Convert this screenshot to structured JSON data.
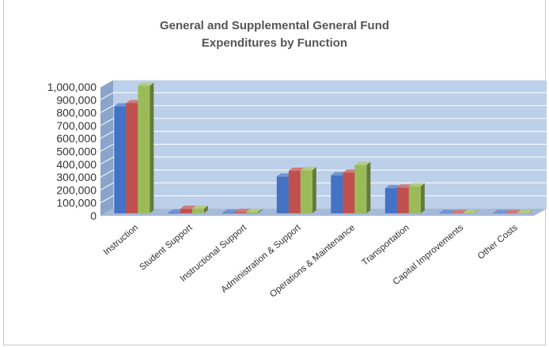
{
  "chart_data": {
    "type": "bar",
    "title_lines": [
      "General and Supplemental General Fund",
      "Expenditures by Function"
    ],
    "xlabel": "",
    "ylabel": "",
    "categories": [
      "Instruction",
      "Student Support",
      "Instructional Support",
      "Administration & Support",
      "Operations & Maintenance",
      "Transportation",
      "Capital Improvements",
      "Other Costs"
    ],
    "ylim": [
      0,
      1000000
    ],
    "yticks": [
      0,
      100000,
      200000,
      300000,
      400000,
      500000,
      600000,
      700000,
      800000,
      900000,
      1000000
    ],
    "ytick_labels": [
      "0",
      "100,000",
      "200,000",
      "300,000",
      "400,000",
      "500,000",
      "600,000",
      "700,000",
      "800,000",
      "900,000",
      "1,000,000"
    ],
    "grid": true,
    "legend": "none",
    "series": [
      {
        "color": "#4472c4",
        "values": [
          830000,
          5000,
          5000,
          285000,
          295000,
          195000,
          3000,
          3000
        ]
      },
      {
        "color": "#c0504d",
        "values": [
          855000,
          35000,
          10000,
          330000,
          315000,
          200000,
          3000,
          3000
        ]
      },
      {
        "color": "#9bbb59",
        "values": [
          990000,
          35000,
          10000,
          335000,
          375000,
          210000,
          3000,
          3000
        ]
      }
    ],
    "colors": {
      "plot_background": "#bdd0ea",
      "side_wall": "#8aa5c9",
      "floor": "#a6b9d6",
      "gridline": "#ffffff"
    }
  }
}
